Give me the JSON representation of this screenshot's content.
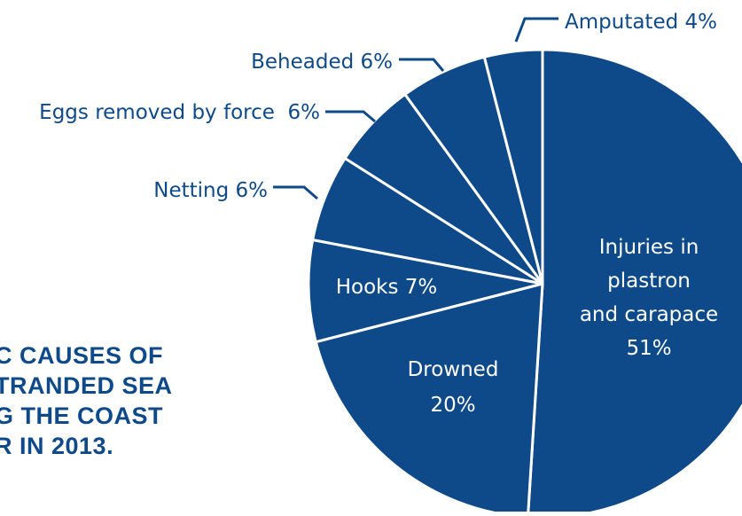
{
  "colors": {
    "slice": "#0e4a8a",
    "separator": "#ffffff",
    "label_outside": "#0e4a8a",
    "label_inside": "#ffffff",
    "title": "#0e4a8a"
  },
  "title_lines": [
    "C CAUSES OF",
    "TRANDED SEA",
    "G THE COAST",
    "R IN 2013."
  ],
  "chart_data": {
    "type": "pie",
    "slices": [
      {
        "label": "Injuries in plastron and carapace",
        "display_lines": [
          "Injuries in",
          "plastron",
          "and carapace",
          "51%"
        ],
        "value": 51,
        "label_position": "inside"
      },
      {
        "label": "Drowned",
        "display_lines": [
          "Drowned",
          "20%"
        ],
        "value": 20,
        "label_position": "inside"
      },
      {
        "label": "Hooks",
        "display_lines": [
          "Hooks 7%"
        ],
        "value": 7,
        "label_position": "inside"
      },
      {
        "label": "Netting",
        "display_lines": [
          "Netting 6%"
        ],
        "value": 6,
        "label_position": "outside"
      },
      {
        "label": "Eggs removed by force",
        "display_lines": [
          "Eggs removed by force  6%"
        ],
        "value": 6,
        "label_position": "outside"
      },
      {
        "label": "Beheaded",
        "display_lines": [
          "Beheaded 6%"
        ],
        "value": 6,
        "label_position": "outside"
      },
      {
        "label": "Amputated",
        "display_lines": [
          "Amputated 4%"
        ],
        "value": 4,
        "label_position": "outside"
      }
    ]
  }
}
